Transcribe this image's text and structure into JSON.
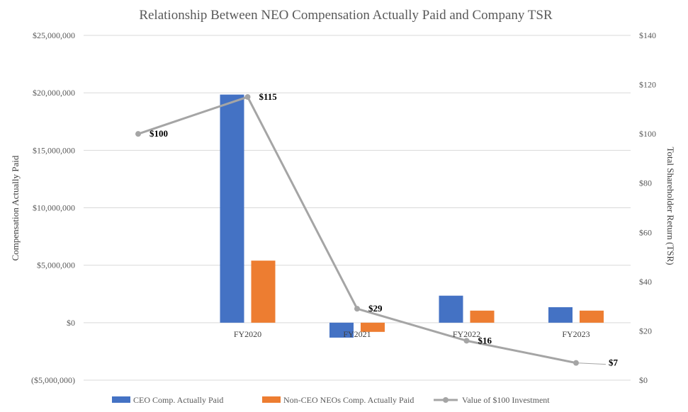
{
  "chart_data": {
    "type": "bar",
    "title": "Relationship Between NEO Compensation Actually Paid and Company TSR",
    "ylabel": "Compensation Actually Paid",
    "y2label": "Total Shareholder Return (TSR)",
    "categories": [
      "",
      "FY2020",
      "FY2021",
      "FY2022",
      "FY2023"
    ],
    "ylim": [
      -5000000,
      25000000
    ],
    "y2lim": [
      0,
      140
    ],
    "yticks": [
      {
        "value": 25000000,
        "label": "$25,000,000"
      },
      {
        "value": 20000000,
        "label": "$20,000,000"
      },
      {
        "value": 15000000,
        "label": "$15,000,000"
      },
      {
        "value": 10000000,
        "label": "$10,000,000"
      },
      {
        "value": 5000000,
        "label": "$5,000,000"
      },
      {
        "value": 0,
        "label": "$0"
      },
      {
        "value": -5000000,
        "label": "($5,000,000)"
      }
    ],
    "y2ticks": [
      {
        "value": 140,
        "label": "$140"
      },
      {
        "value": 120,
        "label": "$120"
      },
      {
        "value": 100,
        "label": "$100"
      },
      {
        "value": 80,
        "label": "$80"
      },
      {
        "value": 60,
        "label": "$60"
      },
      {
        "value": 40,
        "label": "$40"
      },
      {
        "value": 20,
        "label": "$20"
      },
      {
        "value": 0,
        "label": "$0"
      }
    ],
    "series": [
      {
        "name": "CEO Comp. Actually Paid",
        "type": "bar",
        "axis": "left",
        "color": "#4472c4",
        "values": [
          null,
          19850000,
          -1300000,
          2350000,
          1350000
        ]
      },
      {
        "name": "Non-CEO NEOs Comp. Actually Paid",
        "type": "bar",
        "axis": "left",
        "color": "#ed7d31",
        "values": [
          null,
          5400000,
          -800000,
          1050000,
          1050000
        ]
      },
      {
        "name": "Value of $100 Investment",
        "type": "line",
        "axis": "right",
        "color": "#a5a5a5",
        "values": [
          100,
          115,
          29,
          16,
          7
        ],
        "labels": [
          "$100",
          "$115",
          "$29",
          "$16",
          "$7"
        ]
      }
    ],
    "legend": "bottom",
    "grid": true
  }
}
